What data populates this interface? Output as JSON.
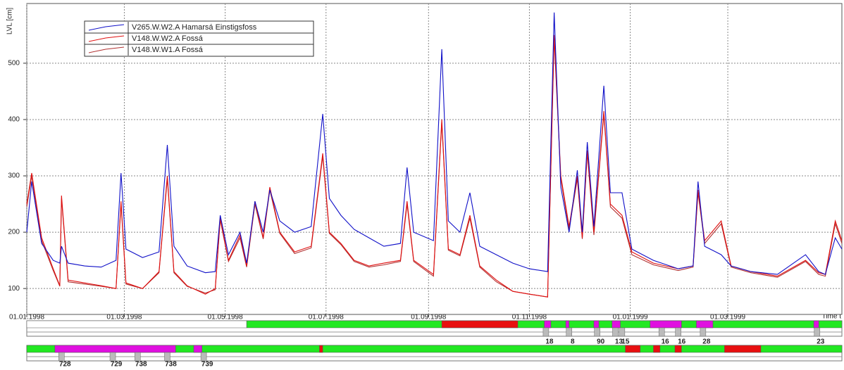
{
  "chart_data": {
    "type": "line",
    "y_label": "LVL [cm]",
    "x_label": "Time t",
    "ylim": [
      54,
      606
    ],
    "yticks": [
      100,
      200,
      300,
      400,
      500
    ],
    "xlim": [
      "01.01.1998",
      "09.05.1999"
    ],
    "xticks": [
      "01.01.1998",
      "01.03.1998",
      "01.05.1998",
      "01.07.1998",
      "01.09.1998",
      "01.11.1998",
      "01.01.1999",
      "01.03.1999"
    ],
    "grid": true,
    "legend": "upper left",
    "x": [
      "01.01.1998",
      "04.01.1998",
      "10.01.1998",
      "17.01.1998",
      "21.01.1998",
      "22.01.1998",
      "26.01.1998",
      "05.02.1998",
      "15.02.1998",
      "24.02.1998",
      "27.02.1998",
      "02.03.1998",
      "12.03.1998",
      "22.03.1998",
      "27.03.1998",
      "31.03.1998",
      "08.04.1998",
      "19.04.1998",
      "25.04.1998",
      "28.04.1998",
      "03.05.1998",
      "10.05.1998",
      "14.05.1998",
      "19.05.1998",
      "24.05.1998",
      "28.05.1998",
      "03.06.1998",
      "12.06.1998",
      "22.06.1998",
      "29.06.1998",
      "03.07.1998",
      "10.07.1998",
      "18.07.1998",
      "27.07.1998",
      "05.08.1998",
      "15.08.1998",
      "19.08.1998",
      "23.08.1998",
      "04.09.1998",
      "09.09.1998",
      "13.09.1998",
      "20.09.1998",
      "26.09.1998",
      "02.10.1998",
      "12.10.1998",
      "22.10.1998",
      "01.11.1998",
      "12.11.1998",
      "16.11.1998",
      "20.11.1998",
      "25.11.1998",
      "30.11.1998",
      "03.12.1998",
      "06.12.1998",
      "10.12.1998",
      "16.12.1998",
      "20.12.1998",
      "27.12.1998",
      "02.01.1999",
      "15.01.1999",
      "30.01.1999",
      "08.02.1999",
      "11.02.1999",
      "15.02.1999",
      "25.02.1999",
      "03.03.1999",
      "15.03.1999",
      "31.03.1999",
      "17.04.1999",
      "25.04.1999",
      "29.04.1999",
      "05.05.1999",
      "09.05.1999"
    ],
    "series": [
      {
        "name": "V265.W.W2.A  Hamarsá Einstigsfoss",
        "color": "#1010c8",
        "values": [
          200,
          290,
          180,
          150,
          145,
          175,
          145,
          140,
          138,
          150,
          305,
          170,
          155,
          165,
          355,
          175,
          140,
          128,
          130,
          230,
          160,
          200,
          145,
          255,
          200,
          275,
          220,
          200,
          210,
          410,
          260,
          230,
          205,
          190,
          175,
          180,
          315,
          200,
          185,
          525,
          220,
          200,
          270,
          175,
          160,
          145,
          135,
          130,
          590,
          280,
          200,
          310,
          200,
          360,
          210,
          460,
          270,
          270,
          170,
          150,
          135,
          140,
          290,
          175,
          160,
          140,
          130,
          125,
          160,
          130,
          125,
          190,
          170
        ]
      },
      {
        "name": "V148.W.W2.A  Fossá",
        "color": "#e01010",
        "values": [
          250,
          305,
          190,
          135,
          105,
          265,
          115,
          110,
          105,
          100,
          255,
          110,
          100,
          130,
          300,
          130,
          105,
          90,
          100,
          225,
          150,
          195,
          140,
          255,
          190,
          280,
          200,
          165,
          175,
          340,
          200,
          180,
          150,
          140,
          145,
          150,
          255,
          150,
          125,
          400,
          170,
          160,
          230,
          140,
          115,
          95,
          90,
          85,
          550,
          300,
          210,
          300,
          190,
          345,
          200,
          415,
          250,
          230,
          165,
          145,
          135,
          140,
          275,
          185,
          220,
          140,
          130,
          122,
          150,
          128,
          125,
          220,
          185
        ]
      },
      {
        "name": "V148.W.W1.A  Fossá",
        "color": "#b03030",
        "values": [
          245,
          300,
          185,
          132,
          104,
          260,
          112,
          108,
          104,
          100,
          250,
          108,
          100,
          128,
          295,
          128,
          104,
          92,
          98,
          222,
          148,
          190,
          138,
          250,
          188,
          275,
          198,
          162,
          172,
          335,
          198,
          178,
          148,
          138,
          142,
          148,
          250,
          148,
          122,
          395,
          168,
          158,
          225,
          138,
          112,
          95,
          90,
          85,
          545,
          295,
          205,
          295,
          188,
          340,
          195,
          410,
          245,
          225,
          160,
          142,
          132,
          138,
          270,
          180,
          215,
          138,
          128,
          120,
          148,
          125,
          122,
          215,
          180
        ]
      }
    ],
    "status_bars": [
      {
        "segments": [
          {
            "from": "01.01.1998",
            "to": "14.05.1998",
            "color": "#ffffff"
          },
          {
            "from": "14.05.1998",
            "to": "09.05.1999",
            "color": "#22e822"
          },
          {
            "from": "09.09.1998",
            "to": "25.10.1998",
            "color": "#e81010"
          },
          {
            "from": "10.11.1998",
            "to": "14.11.1998",
            "color": "#e010e0"
          },
          {
            "from": "23.11.1998",
            "to": "25.11.1998",
            "color": "#e010e0"
          },
          {
            "from": "10.12.1998",
            "to": "13.12.1998",
            "color": "#e010e0"
          },
          {
            "from": "21.12.1998",
            "to": "26.12.1998",
            "color": "#e010e0"
          },
          {
            "from": "13.01.1999",
            "to": "01.02.1999",
            "color": "#e010e0"
          },
          {
            "from": "10.02.1999",
            "to": "20.02.1999",
            "color": "#e010e0"
          },
          {
            "from": "22.04.1999",
            "to": "25.04.1999",
            "color": "#e010e0"
          }
        ],
        "labels": [
          {
            "at": "11.11.1998",
            "text": "18"
          },
          {
            "at": "25.11.1998",
            "text": "8"
          },
          {
            "at": "12.12.1998",
            "text": "90"
          },
          {
            "at": "23.12.1998",
            "text": "13"
          },
          {
            "at": "27.12.1998",
            "text": "15"
          },
          {
            "at": "20.01.1999",
            "text": "16"
          },
          {
            "at": "30.01.1999",
            "text": "16"
          },
          {
            "at": "14.02.1999",
            "text": "28"
          },
          {
            "at": "24.04.1999",
            "text": "23"
          }
        ]
      },
      {
        "segments": [
          {
            "from": "01.01.1998",
            "to": "09.05.1999",
            "color": "#22e822"
          },
          {
            "from": "18.01.1998",
            "to": "01.04.1998",
            "color": "#e010e0"
          },
          {
            "from": "12.04.1998",
            "to": "17.04.1998",
            "color": "#e010e0"
          },
          {
            "from": "27.06.1998",
            "to": "29.06.1998",
            "color": "#e81010"
          },
          {
            "from": "29.12.1998",
            "to": "07.01.1999",
            "color": "#e81010"
          },
          {
            "from": "15.01.1999",
            "to": "19.01.1999",
            "color": "#e81010"
          },
          {
            "from": "28.01.1999",
            "to": "01.02.1999",
            "color": "#e81010"
          },
          {
            "from": "27.02.1999",
            "to": "21.03.1999",
            "color": "#e81010"
          }
        ],
        "labels": [
          {
            "at": "22.01.1998",
            "text": "728"
          },
          {
            "at": "22.02.1998",
            "text": "729"
          },
          {
            "at": "09.03.1998",
            "text": "738"
          },
          {
            "at": "27.03.1998",
            "text": "738"
          },
          {
            "at": "18.04.1998",
            "text": "739"
          }
        ]
      }
    ]
  }
}
